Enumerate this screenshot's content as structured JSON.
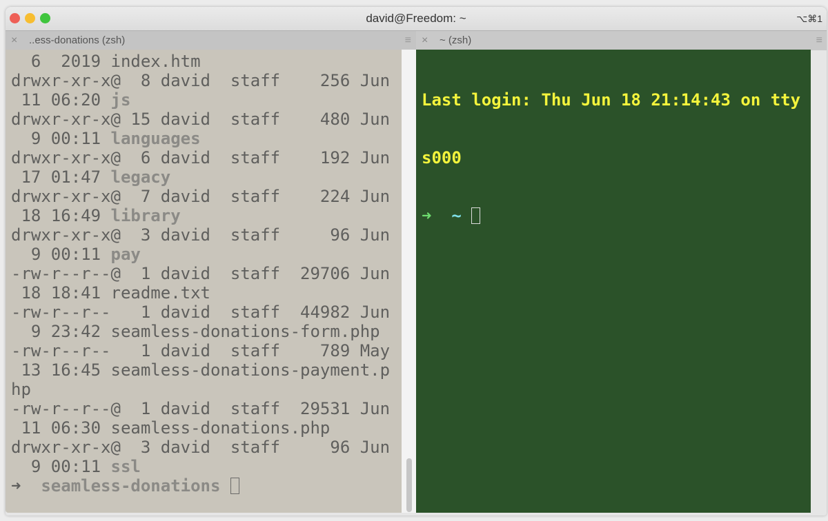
{
  "window": {
    "title": "david@Freedom: ~",
    "shortcut": "⌥⌘1",
    "traffic_lights": {
      "close": "#ee5f56",
      "minimize": "#f7bd30",
      "zoom": "#3fc53d"
    }
  },
  "tabs": [
    {
      "label": "..ess-donations (zsh)",
      "close_icon": "×",
      "menu_icon": "≡"
    },
    {
      "label": "~ (zsh)",
      "close_icon": "×",
      "menu_icon": "≡"
    }
  ],
  "left_pane": {
    "lines": [
      [
        {
          "t": "  6  2019 index.htm"
        }
      ],
      [
        {
          "t": "drwxr-xr-x@  8 david  staff    256 Jun"
        }
      ],
      [
        {
          "t": " 11 06:20 "
        },
        {
          "t": "js",
          "b": true
        }
      ],
      [
        {
          "t": "drwxr-xr-x@ 15 david  staff    480 Jun"
        }
      ],
      [
        {
          "t": "  9 00:11 "
        },
        {
          "t": "languages",
          "b": true
        }
      ],
      [
        {
          "t": "drwxr-xr-x@  6 david  staff    192 Jun"
        }
      ],
      [
        {
          "t": " 17 01:47 "
        },
        {
          "t": "legacy",
          "b": true
        }
      ],
      [
        {
          "t": "drwxr-xr-x@  7 david  staff    224 Jun"
        }
      ],
      [
        {
          "t": " 18 16:49 "
        },
        {
          "t": "library",
          "b": true
        }
      ],
      [
        {
          "t": "drwxr-xr-x@  3 david  staff     96 Jun"
        }
      ],
      [
        {
          "t": "  9 00:11 "
        },
        {
          "t": "pay",
          "b": true
        }
      ],
      [
        {
          "t": "-rw-r--r--@  1 david  staff  29706 Jun"
        }
      ],
      [
        {
          "t": " 18 18:41 readme.txt"
        }
      ],
      [
        {
          "t": "-rw-r--r--   1 david  staff  44982 Jun"
        }
      ],
      [
        {
          "t": "  9 23:42 seamless-donations-form.php"
        }
      ],
      [
        {
          "t": "-rw-r--r--   1 david  staff    789 May"
        }
      ],
      [
        {
          "t": " 13 16:45 seamless-donations-payment.p"
        }
      ],
      [
        {
          "t": "hp"
        }
      ],
      [
        {
          "t": "-rw-r--r--@  1 david  staff  29531 Jun"
        }
      ],
      [
        {
          "t": " 11 06:30 seamless-donations.php"
        }
      ],
      [
        {
          "t": "drwxr-xr-x@  3 david  staff     96 Jun"
        }
      ],
      [
        {
          "t": "  9 00:11 "
        },
        {
          "t": "ssl",
          "b": true
        }
      ]
    ],
    "prompt_arrow": "➜",
    "prompt_dir": "seamless-donations"
  },
  "right_pane": {
    "lines": [
      "Last login: Thu Jun 18 21:14:43 on tty",
      "s000"
    ],
    "prompt_arrow": "➜",
    "prompt_dir": "~"
  },
  "colors": {
    "left_bg": "#c9c5bb",
    "right_bg": "#2b5229",
    "right_text": "#f4f43c"
  }
}
